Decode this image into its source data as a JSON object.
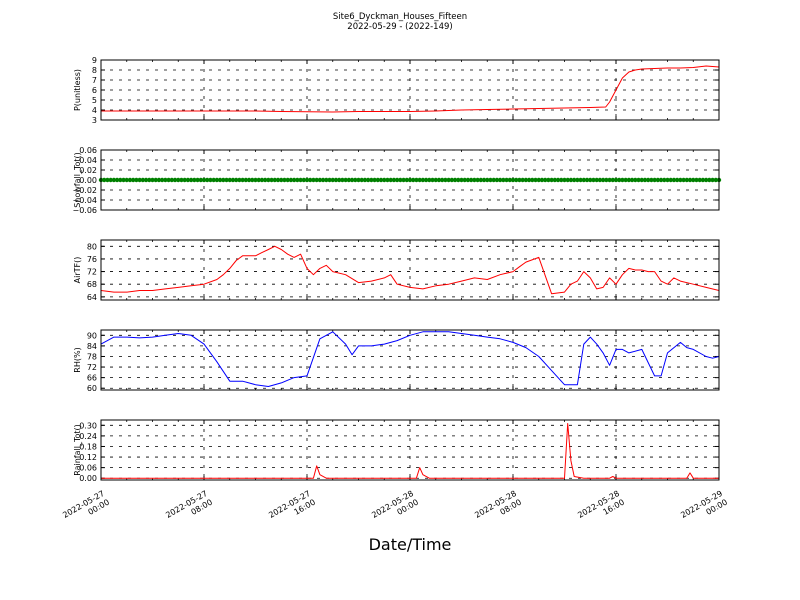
{
  "figure": {
    "title": "Site6_Dyckman_Houses_Fifteen",
    "subtitle": "2022-05-29 - (2022-149)",
    "xlabel": "Date/Time",
    "x_ticks": [
      {
        "hour": 0,
        "line1": "2022-05-27",
        "line2": "00:00"
      },
      {
        "hour": 8,
        "line1": "2022-05-27",
        "line2": "08:00"
      },
      {
        "hour": 16,
        "line1": "2022-05-27",
        "line2": "16:00"
      },
      {
        "hour": 24,
        "line1": "2022-05-28",
        "line2": "00:00"
      },
      {
        "hour": 32,
        "line1": "2022-05-28",
        "line2": "08:00"
      },
      {
        "hour": 40,
        "line1": "2022-05-28",
        "line2": "16:00"
      },
      {
        "hour": 48,
        "line1": "2022-05-29",
        "line2": "00:00"
      }
    ]
  },
  "chart_data": [
    {
      "type": "line",
      "ylabel": "P(unitless)",
      "color": "#ff0000",
      "ylim": [
        3,
        9
      ],
      "yticks": [
        "3",
        "4",
        "5",
        "6",
        "7",
        "8",
        "9"
      ],
      "ytick_values": [
        3,
        4,
        5,
        6,
        7,
        8,
        9
      ],
      "x_unit": "hours since 2022-05-27 00:00",
      "x": [
        0,
        4,
        8,
        12,
        14,
        18,
        20,
        24,
        26,
        28,
        30,
        32,
        34,
        36,
        38,
        39.2,
        39.5,
        40,
        40.5,
        41,
        41.5,
        42,
        43,
        44,
        45,
        46,
        47,
        48
      ],
      "values": [
        3.9,
        3.9,
        3.9,
        3.9,
        3.85,
        3.8,
        3.85,
        3.85,
        3.9,
        4.0,
        4.05,
        4.1,
        4.15,
        4.2,
        4.25,
        4.3,
        4.8,
        6.0,
        7.2,
        7.8,
        8.0,
        8.1,
        8.15,
        8.2,
        8.2,
        8.25,
        8.4,
        8.3
      ]
    },
    {
      "type": "scatter",
      "ylabel": "Snowfall_Tot()",
      "color": "#008000",
      "ylim": [
        -0.06,
        0.06
      ],
      "yticks": [
        "−0.06",
        "−0.04",
        "−0.02",
        "0.00",
        "0.02",
        "0.04",
        "0.06"
      ],
      "ytick_values": [
        -0.06,
        -0.04,
        -0.02,
        0,
        0.02,
        0.04,
        0.06
      ],
      "x_unit": "hours since 2022-05-27 00:00",
      "x_range": [
        0,
        48
      ],
      "x_step": 0.25,
      "constant_value": 0.0
    },
    {
      "type": "line",
      "ylabel": "AirTF()",
      "color": "#ff0000",
      "ylim": [
        63,
        82
      ],
      "yticks": [
        "64",
        "68",
        "72",
        "76",
        "80"
      ],
      "ytick_values": [
        64,
        68,
        72,
        76,
        80
      ],
      "x_unit": "hours since 2022-05-27 00:00",
      "x": [
        0,
        1,
        2,
        3,
        4,
        5,
        6,
        7,
        8,
        9,
        9.5,
        10,
        10.5,
        11,
        12,
        12.5,
        13,
        13.5,
        14,
        14.5,
        15,
        15.5,
        16,
        16.5,
        17,
        17.5,
        18,
        19,
        20,
        21,
        22,
        22.5,
        23,
        24,
        25,
        26,
        27,
        28,
        29,
        30,
        31,
        32,
        32.5,
        33,
        34,
        35,
        36,
        36.5,
        37,
        37.5,
        38,
        38.5,
        39,
        39.5,
        40,
        40.5,
        41,
        41.5,
        42,
        42.5,
        43,
        43.5,
        44,
        44.5,
        45,
        46,
        47,
        48
      ],
      "values": [
        66,
        65.5,
        65.5,
        66,
        66,
        66.5,
        67,
        67.5,
        68,
        69.5,
        71,
        73,
        75.5,
        77,
        77,
        78,
        79,
        80,
        79,
        77.5,
        76.5,
        77.5,
        73,
        71,
        73,
        74,
        72,
        71,
        68.5,
        69,
        70,
        71,
        68,
        67,
        66.5,
        67.5,
        68,
        69,
        70,
        69.5,
        71,
        72,
        73.5,
        75,
        76.5,
        65,
        65.5,
        68,
        69,
        72,
        70,
        66.5,
        67,
        70,
        68,
        71,
        73,
        72.5,
        72.5,
        72,
        72,
        69,
        68,
        70,
        69,
        68,
        67,
        66
      ]
    },
    {
      "type": "line",
      "ylabel": "RH(%)",
      "color": "#0000ff",
      "ylim": [
        59,
        93
      ],
      "yticks": [
        "60",
        "66",
        "72",
        "78",
        "84",
        "90"
      ],
      "ytick_values": [
        60,
        66,
        72,
        78,
        84,
        90
      ],
      "x_unit": "hours since 2022-05-27 00:00",
      "x": [
        0,
        1,
        2,
        3,
        4,
        5,
        6,
        7,
        8,
        9,
        10,
        11,
        12,
        13,
        14,
        15,
        16,
        17,
        18,
        19,
        19.5,
        20,
        21,
        22,
        23,
        24,
        25,
        26,
        27,
        28,
        29,
        30,
        31,
        32,
        33,
        34,
        35,
        36,
        37,
        37.5,
        38,
        38.5,
        39,
        39.5,
        40,
        40.5,
        41,
        42,
        43,
        43.5,
        44,
        45,
        45.5,
        46,
        47,
        47.5,
        48
      ],
      "values": [
        85,
        89,
        89,
        88.5,
        89,
        90,
        91,
        90,
        85,
        75,
        64,
        64,
        62,
        61,
        63,
        66,
        67,
        88,
        92,
        85,
        79,
        84,
        84,
        85,
        87,
        90,
        92,
        92,
        92,
        91,
        90,
        89,
        88,
        86,
        83,
        78,
        70,
        62,
        62,
        85,
        89,
        85,
        80,
        73,
        82,
        82,
        80,
        82,
        67,
        67,
        80,
        86,
        83,
        82,
        78,
        77,
        78
      ]
    },
    {
      "type": "line",
      "ylabel": "Rainfall_Tot()",
      "color": "#ff0000",
      "ylim": [
        -0.01,
        0.33
      ],
      "yticks": [
        "0.00",
        "0.06",
        "0.12",
        "0.18",
        "0.24",
        "0.30"
      ],
      "ytick_values": [
        0,
        0.06,
        0.12,
        0.18,
        0.24,
        0.3
      ],
      "x_unit": "hours since 2022-05-27 00:00",
      "x": [
        0,
        16.5,
        16.75,
        17.0,
        17.5,
        24.5,
        24.75,
        25.0,
        25.5,
        36.0,
        36.25,
        36.5,
        36.75,
        37.5,
        39.5,
        39.75,
        40.0,
        45.5,
        45.75,
        46.0,
        48
      ],
      "values": [
        0,
        0,
        0.07,
        0.02,
        0,
        0,
        0.06,
        0.02,
        0,
        0,
        0.31,
        0.1,
        0.01,
        0,
        0,
        0.01,
        0,
        0,
        0.03,
        0,
        0
      ]
    }
  ]
}
